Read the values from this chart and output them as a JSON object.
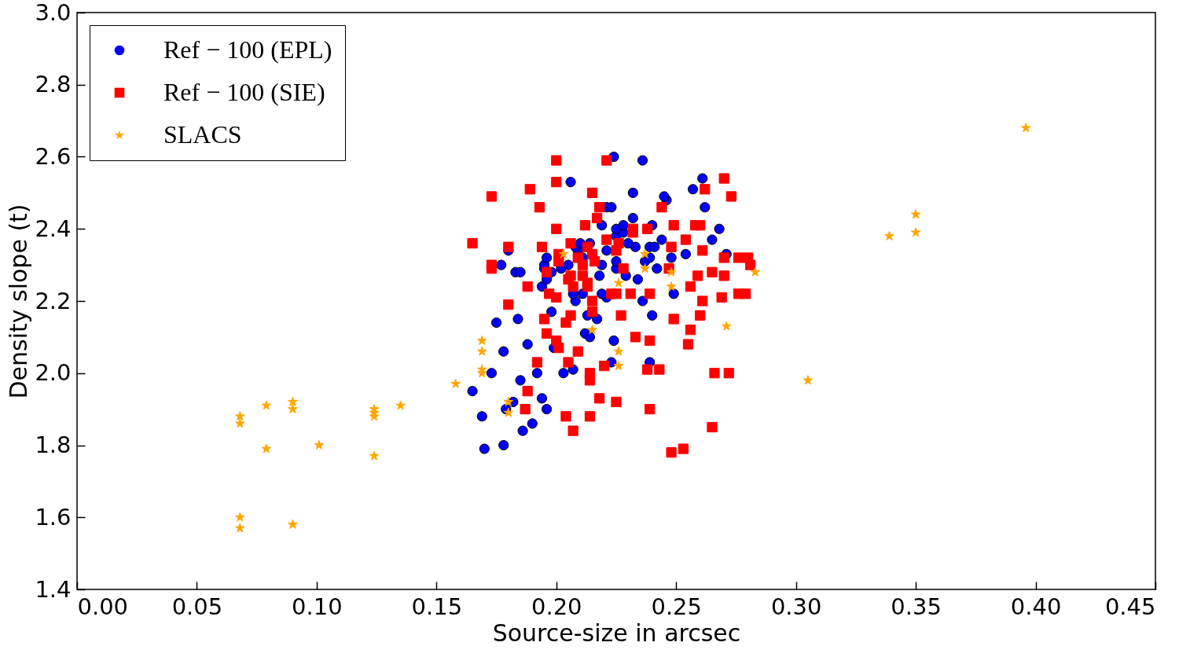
{
  "chart_data": {
    "type": "scatter",
    "xlabel": "Source-size in arcsec",
    "ylabel": "Density slope (t)",
    "xlim": [
      0,
      0.45
    ],
    "ylim": [
      1.4,
      3.0
    ],
    "xticks": [
      {
        "value": 0,
        "label": "0.00"
      },
      {
        "value": 0.05,
        "label": "0.05"
      },
      {
        "value": 0.1,
        "label": "0.10"
      },
      {
        "value": 0.15,
        "label": "0.15"
      },
      {
        "value": 0.2,
        "label": "0.20"
      },
      {
        "value": 0.25,
        "label": "0.25"
      },
      {
        "value": 0.3,
        "label": "0.30"
      },
      {
        "value": 0.35,
        "label": "0.35"
      },
      {
        "value": 0.4,
        "label": "0.40"
      },
      {
        "value": 0.45,
        "label": "0.45"
      }
    ],
    "yticks": [
      1.4,
      1.6,
      1.8,
      {
        "value": 2.0,
        "label": "2.0"
      },
      2.2,
      2.4,
      2.6,
      2.8,
      {
        "value": 3.0,
        "label": "3.0"
      }
    ],
    "grid": false,
    "legend": "top left",
    "series": [
      {
        "name": "Ref − 100 (EPL)",
        "color": "#0000ff",
        "marker": "circle",
        "x": [
          0.17,
          0.178,
          0.186,
          0.19,
          0.169,
          0.179,
          0.182,
          0.194,
          0.196,
          0.165,
          0.185,
          0.192,
          0.173,
          0.203,
          0.207,
          0.223,
          0.239,
          0.178,
          0.188,
          0.199,
          0.224,
          0.212,
          0.214,
          0.175,
          0.184,
          0.217,
          0.198,
          0.213,
          0.24,
          0.208,
          0.236,
          0.221,
          0.207,
          0.211,
          0.219,
          0.249,
          0.194,
          0.234,
          0.196,
          0.218,
          0.229,
          0.198,
          0.183,
          0.185,
          0.195,
          0.202,
          0.225,
          0.242,
          0.219,
          0.177,
          0.195,
          0.205,
          0.225,
          0.237,
          0.196,
          0.211,
          0.239,
          0.248,
          0.254,
          0.271,
          0.18,
          0.209,
          0.221,
          0.208,
          0.239,
          0.241,
          0.233,
          0.214,
          0.21,
          0.23,
          0.244,
          0.265,
          0.225,
          0.228,
          0.225,
          0.219,
          0.228,
          0.24,
          0.268,
          0.232,
          0.221,
          0.223,
          0.262,
          0.246,
          0.245,
          0.232,
          0.257,
          0.206,
          0.261,
          0.236,
          0.224
        ],
        "values": [
          1.79,
          1.8,
          1.84,
          1.86,
          1.88,
          1.9,
          1.92,
          1.93,
          1.9,
          1.95,
          1.98,
          2.0,
          2.0,
          2.0,
          2.01,
          2.03,
          2.03,
          2.06,
          2.08,
          2.07,
          2.09,
          2.11,
          2.1,
          2.14,
          2.15,
          2.15,
          2.17,
          2.16,
          2.16,
          2.2,
          2.2,
          2.21,
          2.22,
          2.22,
          2.22,
          2.22,
          2.24,
          2.26,
          2.26,
          2.27,
          2.27,
          2.28,
          2.28,
          2.28,
          2.29,
          2.29,
          2.29,
          2.29,
          2.3,
          2.3,
          2.3,
          2.3,
          2.31,
          2.31,
          2.32,
          2.32,
          2.32,
          2.32,
          2.33,
          2.33,
          2.34,
          2.34,
          2.34,
          2.35,
          2.35,
          2.35,
          2.35,
          2.36,
          2.36,
          2.36,
          2.37,
          2.37,
          2.38,
          2.39,
          2.4,
          2.41,
          2.41,
          2.41,
          2.4,
          2.43,
          2.46,
          2.46,
          2.46,
          2.48,
          2.49,
          2.5,
          2.51,
          2.53,
          2.54,
          2.59,
          2.6
        ]
      },
      {
        "name": "Ref − 100 (SIE)",
        "color": "#ff0000",
        "marker": "square",
        "x": [
          0.2,
          0.221,
          0.2,
          0.173,
          0.189,
          0.215,
          0.193,
          0.218,
          0.217,
          0.2,
          0.212,
          0.165,
          0.18,
          0.194,
          0.221,
          0.206,
          0.213,
          0.201,
          0.215,
          0.209,
          0.173,
          0.173,
          0.201,
          0.211,
          0.216,
          0.196,
          0.206,
          0.205,
          0.211,
          0.213,
          0.213,
          0.207,
          0.188,
          0.197,
          0.2,
          0.215,
          0.223,
          0.225,
          0.18,
          0.27,
          0.262,
          0.273,
          0.244,
          0.249,
          0.258,
          0.26,
          0.232,
          0.232,
          0.238,
          0.226,
          0.225,
          0.254,
          0.248,
          0.261,
          0.276,
          0.28,
          0.281,
          0.27,
          0.228,
          0.247,
          0.259,
          0.265,
          0.27,
          0.256,
          0.231,
          0.239,
          0.261,
          0.269,
          0.276,
          0.279,
          0.227,
          0.249,
          0.26,
          0.256,
          0.233,
          0.239,
          0.255,
          0.238,
          0.243,
          0.266,
          0.272,
          0.225,
          0.239,
          0.265,
          0.248,
          0.253,
          0.206,
          0.195,
          0.204,
          0.215,
          0.196,
          0.2,
          0.201,
          0.209,
          0.192,
          0.205,
          0.214,
          0.214,
          0.22,
          0.188,
          0.218,
          0.187,
          0.204,
          0.214,
          0.207
        ],
        "values": [
          2.59,
          2.59,
          2.53,
          2.49,
          2.51,
          2.5,
          2.46,
          2.46,
          2.43,
          2.4,
          2.41,
          2.36,
          2.35,
          2.35,
          2.37,
          2.36,
          2.35,
          2.33,
          2.33,
          2.32,
          2.3,
          2.29,
          2.31,
          2.3,
          2.31,
          2.28,
          2.27,
          2.26,
          2.27,
          2.25,
          2.24,
          2.24,
          2.24,
          2.22,
          2.21,
          2.2,
          2.22,
          2.22,
          2.19,
          2.54,
          2.51,
          2.49,
          2.46,
          2.41,
          2.41,
          2.41,
          2.4,
          2.39,
          2.4,
          2.36,
          2.34,
          2.37,
          2.35,
          2.34,
          2.32,
          2.32,
          2.3,
          2.32,
          2.29,
          2.29,
          2.27,
          2.28,
          2.27,
          2.24,
          2.22,
          2.22,
          2.2,
          2.21,
          2.22,
          2.22,
          2.16,
          2.15,
          2.16,
          2.12,
          2.1,
          2.09,
          2.08,
          2.01,
          2.01,
          2.0,
          2.0,
          1.92,
          1.9,
          1.85,
          1.78,
          1.79,
          2.16,
          2.15,
          2.14,
          2.17,
          2.11,
          2.09,
          2.07,
          2.06,
          2.03,
          2.03,
          2.0,
          1.98,
          2.02,
          1.95,
          1.93,
          1.9,
          1.88,
          1.88,
          1.84
        ]
      },
      {
        "name": "SLACS",
        "color": "#ffa500",
        "marker": "star",
        "x": [
          0.068,
          0.068,
          0.079,
          0.079,
          0.09,
          0.09,
          0.101,
          0.124,
          0.124,
          0.124,
          0.124,
          0.135,
          0.158,
          0.068,
          0.068,
          0.09,
          0.169,
          0.169,
          0.169,
          0.169,
          0.18,
          0.18,
          0.215,
          0.203,
          0.237,
          0.237,
          0.248,
          0.226,
          0.248,
          0.283,
          0.271,
          0.226,
          0.226,
          0.305,
          0.339,
          0.35,
          0.35,
          0.396
        ],
        "values": [
          1.88,
          1.86,
          1.91,
          1.79,
          1.92,
          1.9,
          1.8,
          1.9,
          1.89,
          1.88,
          1.77,
          1.91,
          1.97,
          1.6,
          1.57,
          1.58,
          2.09,
          2.06,
          2.01,
          2.0,
          1.92,
          1.89,
          2.12,
          2.33,
          2.33,
          2.29,
          2.28,
          2.25,
          2.24,
          2.28,
          2.13,
          2.06,
          2.02,
          1.98,
          2.38,
          2.44,
          2.39,
          2.68
        ]
      }
    ]
  }
}
